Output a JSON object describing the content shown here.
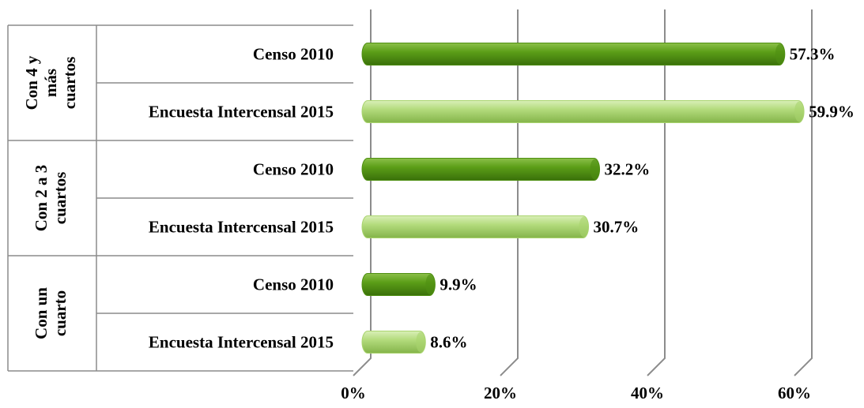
{
  "chart_data": {
    "type": "bar",
    "orientation": "horizontal",
    "categories": [
      "Con 4 y\nmás\ncuartos",
      "Con 2 a 3\ncuartos",
      "Con un\ncuarto"
    ],
    "series": [
      {
        "name": "Censo 2010",
        "color": "#4f8f12",
        "values": [
          57.3,
          32.2,
          9.9
        ],
        "value_labels": [
          "57.3%",
          "32.2%",
          "9.9%"
        ]
      },
      {
        "name": "Encuesta Intercensal 2015",
        "color": "#a9d46e",
        "values": [
          59.9,
          30.7,
          8.6
        ],
        "value_labels": [
          "59.9%",
          "30.7%",
          "8.6%"
        ]
      }
    ],
    "xlim": [
      0,
      60
    ],
    "xticks": [
      {
        "value": 0,
        "label": "0%"
      },
      {
        "value": 20,
        "label": "20%"
      },
      {
        "value": 40,
        "label": "40%"
      },
      {
        "value": 60,
        "label": "60%"
      }
    ],
    "grid": true
  }
}
